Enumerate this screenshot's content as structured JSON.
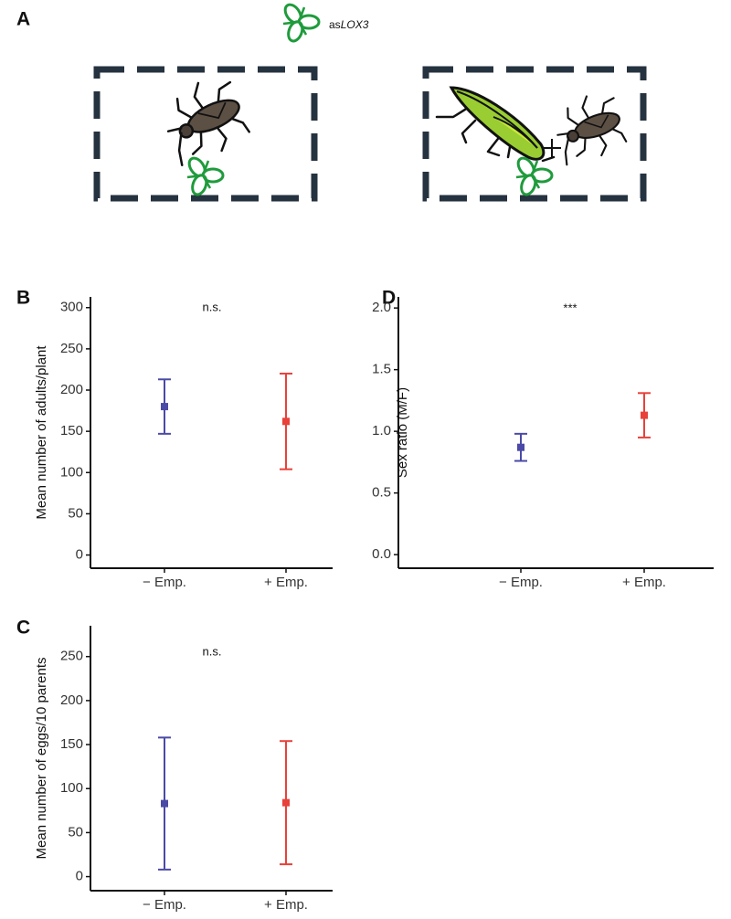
{
  "panel_a": {
    "label": "A",
    "plant_label_prefix": "as",
    "plant_label_gene": "LOX3"
  },
  "chart_data": [
    {
      "type": "errorbar",
      "panel": "B",
      "ylabel": "Mean number of adults/plant",
      "annotation": "n.s.",
      "categories": [
        "− Emp.",
        "+ Emp."
      ],
      "values": [
        180,
        162
      ],
      "errors": [
        33,
        58
      ],
      "colors": [
        "#4b4aa6",
        "#e8413a"
      ],
      "ylim": [
        -16,
        313
      ],
      "yticks": [
        0,
        50,
        100,
        150,
        200,
        250,
        300
      ]
    },
    {
      "type": "errorbar",
      "panel": "D",
      "ylabel": "Sex ratio (M/F)",
      "annotation": "***",
      "categories": [
        "− Emp.",
        "+ Emp."
      ],
      "values": [
        0.87,
        1.13
      ],
      "errors": [
        0.11,
        0.18
      ],
      "colors": [
        "#4b4aa6",
        "#e8413a"
      ],
      "ylim": [
        -0.11,
        2.09
      ],
      "yticks": [
        {
          "value": 0,
          "label": "0.0"
        },
        0.5,
        {
          "value": 1,
          "label": "1.0"
        },
        1.5,
        {
          "value": 2,
          "label": "2.0"
        }
      ]
    },
    {
      "type": "errorbar",
      "panel": "C",
      "ylabel": "Mean number of eggs/10 parents",
      "annotation": "n.s.",
      "categories": [
        "− Emp.",
        "+ Emp."
      ],
      "values": [
        83,
        84
      ],
      "errors": [
        75,
        70
      ],
      "colors": [
        "#4b4aa6",
        "#e8413a"
      ],
      "ylim": [
        -16,
        285
      ],
      "yticks": [
        0,
        50,
        100,
        150,
        200,
        250
      ]
    }
  ]
}
